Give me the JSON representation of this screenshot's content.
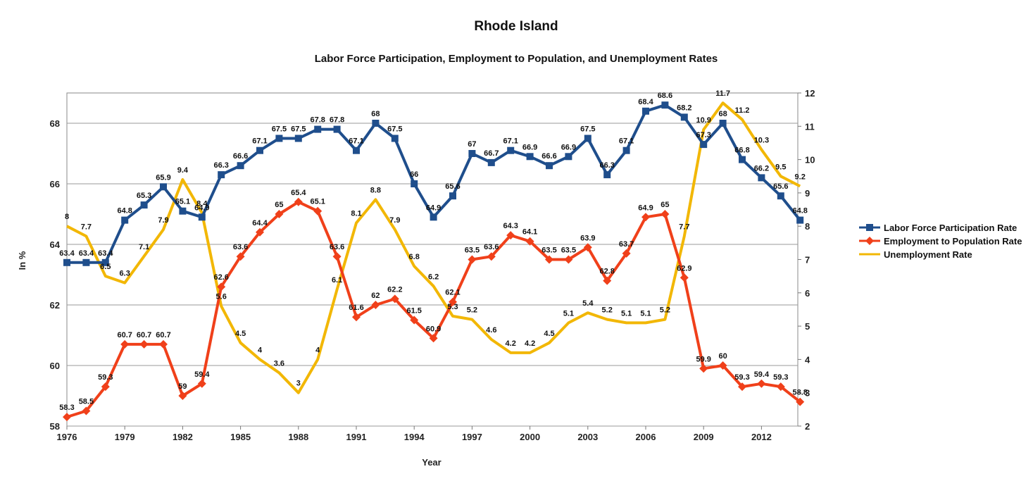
{
  "chart_data": {
    "type": "line",
    "title": "Rhode Island",
    "subtitle": "Labor Force Participation, Employment to Population, and Unemployment Rates",
    "xlabel": "Year",
    "ylabel": "In %",
    "x": [
      1976,
      1977,
      1978,
      1979,
      1980,
      1981,
      1982,
      1983,
      1984,
      1985,
      1986,
      1987,
      1988,
      1989,
      1990,
      1991,
      1992,
      1993,
      1994,
      1995,
      1996,
      1997,
      1998,
      1999,
      2000,
      2001,
      2002,
      2003,
      2004,
      2005,
      2006,
      2007,
      2008,
      2009,
      2010,
      2011,
      2012,
      2013,
      2014
    ],
    "x_tick_labels": [
      "1976",
      "1979",
      "1982",
      "1985",
      "1988",
      "1991",
      "1994",
      "1997",
      "2000",
      "2003",
      "2006",
      "2009",
      "2012"
    ],
    "ylim_left": [
      58,
      69
    ],
    "left_ticks": [
      "58",
      "60",
      "62",
      "64",
      "66",
      "68"
    ],
    "ylim_right": [
      2,
      12
    ],
    "right_ticks": [
      "2",
      "3",
      "4",
      "5",
      "6",
      "7",
      "8",
      "9",
      "10",
      "11",
      "12"
    ],
    "grid": true,
    "legend_position": "right",
    "series": [
      {
        "name": "Labor Force Participation Rate",
        "axis": "left",
        "color": "#1f4e8c",
        "marker": "square",
        "values": [
          63.4,
          63.4,
          63.4,
          64.8,
          65.3,
          65.9,
          65.1,
          64.9,
          66.3,
          66.6,
          67.1,
          67.5,
          67.5,
          67.8,
          67.8,
          67.1,
          68,
          67.5,
          66,
          64.9,
          65.6,
          67,
          66.7,
          67.1,
          66.9,
          66.6,
          66.9,
          67.5,
          66.3,
          67.1,
          68.4,
          68.6,
          68.2,
          67.3,
          68,
          66.8,
          66.2,
          65.6,
          64.8
        ],
        "labels": [
          "63.4",
          "63.4",
          "63.4",
          "64.8",
          "65.3",
          "65.9",
          "65.1",
          "64.9",
          "66.3",
          "66.6",
          "67.1",
          "67.5",
          "67.5",
          "67.8",
          "67.8",
          "67.1",
          "68",
          "67.5",
          "66",
          "64.9",
          "65.6",
          "67",
          "66.7",
          "67.1",
          "66.9",
          "66.6",
          "66.9",
          "67.5",
          "66.3",
          "67.1",
          "68.4",
          "68.6",
          "68.2",
          "67.3",
          "68",
          "66.8",
          "66.2",
          "65.6",
          "64.8"
        ]
      },
      {
        "name": "Employment to Population Rate",
        "axis": "left",
        "color": "#f0401a",
        "marker": "diamond",
        "values": [
          58.3,
          58.5,
          59.3,
          60.7,
          60.7,
          60.7,
          59,
          59.4,
          62.6,
          63.6,
          64.4,
          65,
          65.4,
          65.1,
          63.6,
          61.6,
          62,
          62.2,
          61.5,
          60.9,
          62.1,
          63.5,
          63.6,
          64.3,
          64.1,
          63.5,
          63.5,
          63.9,
          62.8,
          63.7,
          64.9,
          65,
          62.9,
          59.9,
          60,
          59.3,
          59.4,
          59.3,
          58.8
        ],
        "labels": [
          "58.3",
          "58.5",
          "59.3",
          "60.7",
          "60.7",
          "60.7",
          "59",
          "59.4",
          "62.6",
          "63.6",
          "64.4",
          "65",
          "65.4",
          "65.1",
          "63.6",
          "61.6",
          "62",
          "62.2",
          "61.5",
          "60.9",
          "62.1",
          "63.5",
          "63.6",
          "64.3",
          "64.1",
          "63.5",
          "63.5",
          "63.9",
          "62.8",
          "63.7",
          "64.9",
          "65",
          "62.9",
          "59.9",
          "60",
          "59.3",
          "59.4",
          "59.3",
          "58.8"
        ]
      },
      {
        "name": "Unemployment Rate",
        "axis": "right",
        "color": "#f2b705",
        "marker": "none",
        "values": [
          8,
          7.7,
          6.5,
          6.3,
          7.1,
          7.9,
          9.4,
          8.4,
          5.6,
          4.5,
          4,
          3.6,
          3,
          4,
          6.1,
          8.1,
          8.8,
          7.9,
          6.8,
          6.2,
          5.3,
          5.2,
          4.6,
          4.2,
          4.2,
          4.5,
          5.1,
          5.4,
          5.2,
          5.1,
          5.1,
          5.2,
          7.7,
          10.9,
          11.7,
          11.2,
          10.3,
          9.5,
          9.2
        ],
        "labels": [
          "8",
          "7.7",
          "6.5",
          "6.3",
          "7.1",
          "7.9",
          "9.4",
          "8.4",
          "5.6",
          "4.5",
          "4",
          "3.6",
          "3",
          "4",
          "6.1",
          "8.1",
          "8.8",
          "7.9",
          "6.8",
          "6.2",
          "5.3",
          "5.2",
          "4.6",
          "4.2",
          "4.2",
          "4.5",
          "5.1",
          "5.4",
          "5.2",
          "5.1",
          "5.1",
          "5.2",
          "7.7",
          "10.9",
          "11.7",
          "11.2",
          "10.3",
          "9.5",
          "9.2"
        ]
      }
    ]
  }
}
